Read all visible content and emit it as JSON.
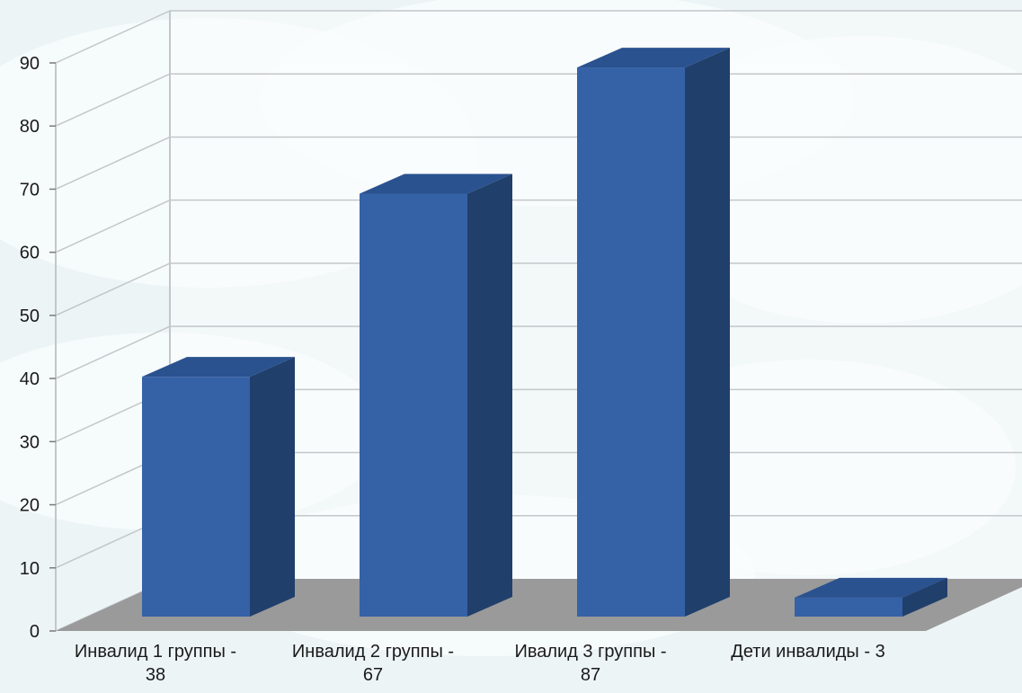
{
  "chart_data": {
    "type": "bar",
    "categories": [
      [
        "Инвалид 1 группы -",
        "38"
      ],
      [
        "Инвалид 2 группы -",
        "67"
      ],
      [
        "Ивалид 3 группы -",
        "87"
      ],
      [
        "Дети инвалиды - 3"
      ]
    ],
    "values": [
      38,
      67,
      87,
      3
    ],
    "ylim": [
      0,
      90
    ],
    "yticks": [
      "0",
      "10",
      "20",
      "30",
      "40",
      "50",
      "60",
      "70",
      "80",
      "90"
    ],
    "grid": true,
    "legend": "none",
    "three_d": true,
    "colors": {
      "bar_front": "#3562a6",
      "bar_side": "#203f6b",
      "bar_top": "#2a528f",
      "floor": "#9a9a9a",
      "grid": "#c3c7c9"
    }
  }
}
